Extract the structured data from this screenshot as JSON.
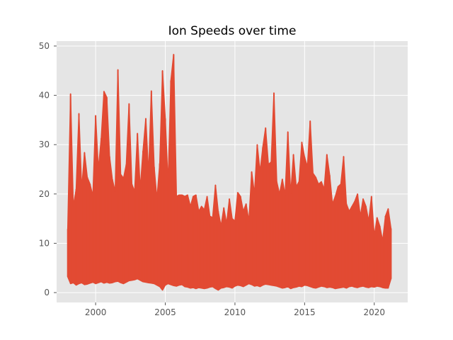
{
  "chart_data": {
    "type": "line",
    "title": "Ion Speeds over time",
    "xlabel": "",
    "ylabel": "",
    "xlim": [
      1997.2,
      2022.4
    ],
    "ylim": [
      -2,
      51
    ],
    "xticks": [
      2000,
      2005,
      2010,
      2015,
      2020
    ],
    "yticks": [
      0,
      10,
      20,
      30,
      40,
      50
    ],
    "x_tick_labels": [
      "2000",
      "2005",
      "2010",
      "2015",
      "2020"
    ],
    "y_tick_labels": [
      "0",
      "10",
      "20",
      "30",
      "40",
      "50"
    ],
    "grid": true,
    "style": "ggplot",
    "line_color": "#e24a33",
    "background_color": "#e5e5e5",
    "series": [
      {
        "x": [
          1998.0,
          1998.2,
          1998.4,
          1998.6,
          1998.8,
          1999.0,
          1999.2,
          1999.4,
          1999.6,
          1999.8,
          2000.0,
          2000.2,
          2000.4,
          2000.6,
          2000.8,
          2001.0,
          2001.2,
          2001.4,
          2001.6,
          2001.8,
          2002.0,
          2002.2,
          2002.4,
          2002.6,
          2002.8,
          2003.0,
          2003.2,
          2003.4,
          2003.6,
          2003.8,
          2004.0,
          2004.2,
          2004.4,
          2004.6,
          2004.8,
          2005.0,
          2005.2,
          2005.4,
          2005.6,
          2005.8,
          2006.0,
          2006.2,
          2006.4,
          2006.6,
          2006.8,
          2007.0,
          2007.2,
          2007.4,
          2007.6,
          2007.8,
          2008.0,
          2008.2,
          2008.4,
          2008.6,
          2008.8,
          2009.0,
          2009.2,
          2009.4,
          2009.6,
          2009.8,
          2010.0,
          2010.2,
          2010.4,
          2010.6,
          2010.8,
          2011.0,
          2011.2,
          2011.4,
          2011.6,
          2011.8,
          2012.0,
          2012.2,
          2012.4,
          2012.6,
          2012.8,
          2013.0,
          2013.2,
          2013.4,
          2013.6,
          2013.8,
          2014.0,
          2014.2,
          2014.4,
          2014.6,
          2014.8,
          2015.0,
          2015.2,
          2015.4,
          2015.6,
          2015.8,
          2016.0,
          2016.2,
          2016.4,
          2016.6,
          2016.8,
          2017.0,
          2017.2,
          2017.4,
          2017.6,
          2017.8,
          2018.0,
          2018.2,
          2018.4,
          2018.6,
          2018.8,
          2019.0,
          2019.2,
          2019.4,
          2019.6,
          2019.8,
          2020.0,
          2020.2,
          2020.4,
          2020.6,
          2020.8,
          2021.0,
          2021.2
        ],
        "high": [
          12.9,
          40.3,
          17.5,
          21,
          36.3,
          21,
          28.4,
          23.4,
          22,
          19.6,
          35.9,
          25,
          31.3,
          40.8,
          39.6,
          27.6,
          23,
          20.5,
          45.2,
          24,
          23.2,
          26,
          38.3,
          22,
          20.5,
          32.3,
          21,
          28.7,
          35.3,
          24,
          40.9,
          25.5,
          19,
          26.2,
          45,
          35.3,
          22,
          43,
          48.3,
          19.5,
          19.8,
          19.8,
          19.5,
          19.8,
          17.5,
          19.5,
          19.8,
          16.5,
          17.5,
          16.8,
          19.5,
          15.5,
          15.2,
          21.8,
          16.5,
          13.5,
          17.2,
          14,
          19,
          15,
          14.5,
          20.3,
          19.5,
          16.5,
          18,
          14.5,
          24.5,
          20,
          30,
          24.5,
          29.5,
          33.4,
          26,
          26.5,
          40.5,
          22.5,
          20,
          23,
          19.8,
          32.6,
          20,
          28,
          21.5,
          22.5,
          30.5,
          27.5,
          25.5,
          34.8,
          24.2,
          23.4,
          22,
          22.5,
          21,
          28,
          23.8,
          18,
          19.5,
          21.5,
          22,
          27.6,
          18,
          16.5,
          17.5,
          18.5,
          20,
          15.5,
          19,
          17.5,
          14.5,
          19.5,
          11.5,
          15.2,
          13.5,
          10.5,
          15.5,
          17,
          13
        ],
        "low": [
          3.2,
          1.8,
          2,
          1.5,
          1.8,
          2,
          1.6,
          1.7,
          1.9,
          2.1,
          1.8,
          2,
          2.2,
          1.9,
          2.1,
          1.9,
          2,
          2.2,
          2.3,
          2,
          1.8,
          2.1,
          2.4,
          2.5,
          2.6,
          2.8,
          2.5,
          2.2,
          2.1,
          2,
          1.9,
          1.8,
          1.5,
          1.2,
          0.5,
          1.5,
          1.8,
          1.6,
          1.4,
          1.3,
          1.5,
          1.6,
          1.2,
          1.1,
          0.9,
          1,
          0.8,
          1,
          0.9,
          0.8,
          0.9,
          1.1,
          1.2,
          0.8,
          0.5,
          0.9,
          1,
          1.2,
          1.1,
          0.9,
          1.3,
          1.5,
          1.4,
          1.2,
          1.5,
          1.8,
          1.6,
          1.3,
          1.4,
          1.2,
          1.5,
          1.7,
          1.6,
          1.5,
          1.4,
          1.3,
          1.1,
          0.9,
          1,
          1.2,
          0.8,
          1,
          1.1,
          1.3,
          1.2,
          1.5,
          1.4,
          1.2,
          1,
          0.9,
          1.1,
          1.3,
          1.2,
          1,
          1.1,
          1,
          0.8,
          0.9,
          1,
          1.1,
          0.9,
          1.2,
          1.3,
          1.1,
          1,
          1.2,
          1.3,
          1.1,
          1,
          1.2,
          1.1,
          1.3,
          1.2,
          1,
          0.9,
          0.9,
          2.8
        ]
      }
    ]
  }
}
